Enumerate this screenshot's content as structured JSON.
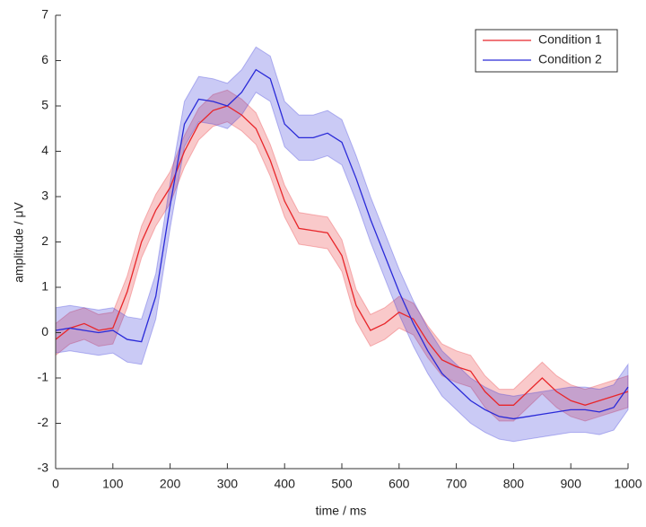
{
  "chart_data": {
    "type": "line",
    "xlabel": "time / ms",
    "ylabel": "amplitude / μV",
    "x": [
      0,
      25,
      50,
      75,
      100,
      125,
      150,
      175,
      200,
      225,
      250,
      275,
      300,
      325,
      350,
      375,
      400,
      425,
      450,
      475,
      500,
      525,
      550,
      575,
      600,
      625,
      650,
      675,
      700,
      725,
      750,
      775,
      800,
      825,
      850,
      875,
      900,
      925,
      950,
      975,
      1000
    ],
    "series": [
      {
        "name": "Condition 1",
        "color": "#e8262a",
        "band_halfwidth": 0.35,
        "values": [
          -0.15,
          0.1,
          0.2,
          0.05,
          0.1,
          0.9,
          2.0,
          2.7,
          3.2,
          4.0,
          4.6,
          4.9,
          5.0,
          4.8,
          4.5,
          3.8,
          2.9,
          2.3,
          2.25,
          2.2,
          1.7,
          0.6,
          0.05,
          0.2,
          0.45,
          0.3,
          -0.2,
          -0.6,
          -0.75,
          -0.85,
          -1.3,
          -1.6,
          -1.6,
          -1.3,
          -1.0,
          -1.3,
          -1.5,
          -1.6,
          -1.5,
          -1.4,
          -1.3
        ]
      },
      {
        "name": "Condition 2",
        "color": "#2a2ad8",
        "band_halfwidth": 0.5,
        "values": [
          0.05,
          0.1,
          0.05,
          0.0,
          0.05,
          -0.15,
          -0.2,
          0.8,
          2.8,
          4.6,
          5.15,
          5.1,
          5.0,
          5.3,
          5.8,
          5.6,
          4.6,
          4.3,
          4.3,
          4.4,
          4.2,
          3.4,
          2.5,
          1.7,
          0.9,
          0.2,
          -0.4,
          -0.9,
          -1.2,
          -1.5,
          -1.7,
          -1.85,
          -1.9,
          -1.85,
          -1.8,
          -1.75,
          -1.7,
          -1.7,
          -1.75,
          -1.65,
          -1.2
        ]
      }
    ],
    "xlim": [
      0,
      1000
    ],
    "xticks": [
      0,
      100,
      200,
      300,
      400,
      500,
      600,
      700,
      800,
      900,
      1000
    ],
    "ylim": [
      -3,
      7
    ],
    "yticks": [
      -3,
      -2,
      -1,
      0,
      1,
      2,
      3,
      4,
      5,
      6,
      7
    ],
    "legend": "top-right"
  }
}
